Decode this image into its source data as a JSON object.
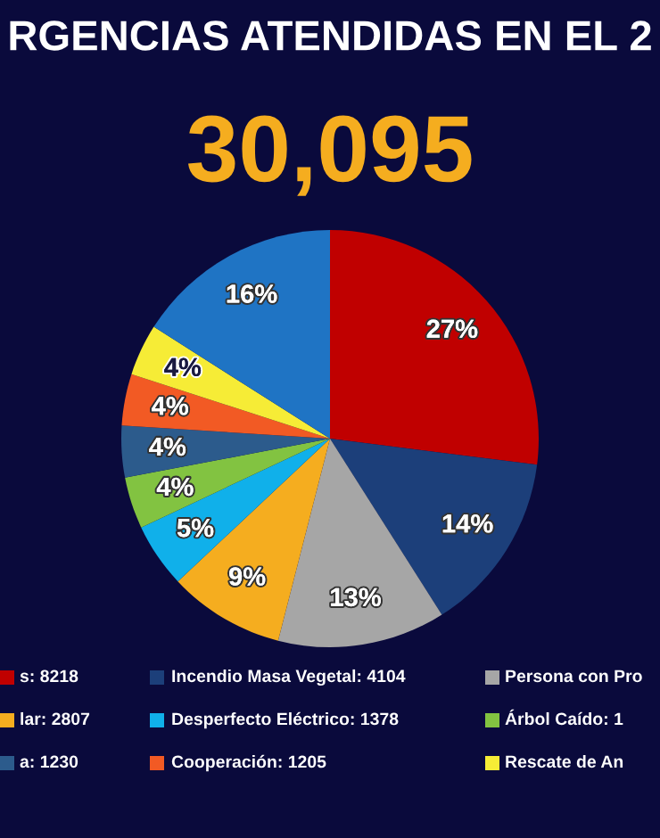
{
  "chart_data": {
    "type": "pie",
    "title": "RGENCIAS ATENDIDAS EN EL 2",
    "subtitle": "30,095",
    "categories": [
      "s: 8218",
      "Incendio Masa Vegetal: 4104",
      "Persona con Pro",
      "lar: 2807",
      "Desperfecto Eléctrico: 1378",
      "Árbol Caído: 1",
      "a: 1230",
      "Cooperación: 1205",
      "Rescate de An",
      null
    ],
    "values": [
      27,
      14,
      13,
      9,
      5,
      4,
      4,
      4,
      4,
      16
    ],
    "colors": [
      "#c00000",
      "#1c3f7a",
      "#a6a6a6",
      "#f5ad1f",
      "#10b0ea",
      "#82c341",
      "#2c5b8c",
      "#f25a24",
      "#f6ec36",
      "#1f74c4"
    ],
    "value_labels": [
      "27%",
      "14%",
      "13%",
      "9%",
      "5%",
      "4%",
      "4%",
      "4%",
      "4%",
      "16%"
    ],
    "legend": "bottom"
  }
}
